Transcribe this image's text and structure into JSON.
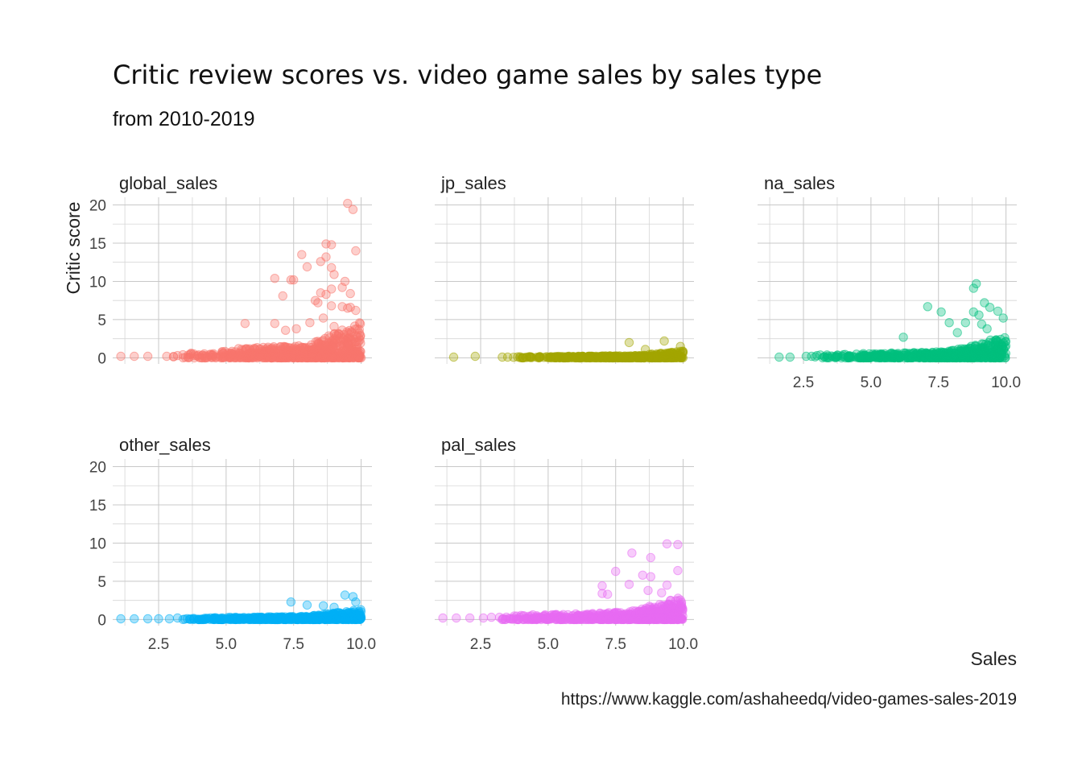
{
  "header": {
    "title": "Critic review scores vs. video game sales by sales type",
    "subtitle": "from 2010-2019"
  },
  "caption": "https://www.kaggle.com/ashaheedq/video-games-sales-2019",
  "chart_data": {
    "type": "scatter",
    "facets": [
      "global_sales",
      "jp_sales",
      "na_sales",
      "other_sales",
      "pal_sales"
    ],
    "xlabel": "Sales",
    "ylabel": "Critic score",
    "xlim": [
      0.8,
      10.4
    ],
    "ylim": [
      -0.8,
      21
    ],
    "x_ticks": [
      "2.5",
      "5.0",
      "7.5",
      "10.0"
    ],
    "x_tick_values": [
      2.5,
      5.0,
      7.5,
      10.0
    ],
    "y_ticks": [
      "0",
      "5",
      "10",
      "15",
      "20"
    ],
    "y_tick_values": [
      0,
      5,
      10,
      15,
      20
    ],
    "grid": true,
    "point_alpha": 0.35,
    "colors": {
      "global_sales": "#F8766D",
      "jp_sales": "#A3A500",
      "na_sales": "#00BF7D",
      "other_sales": "#00B0F6",
      "pal_sales": "#E76BF3"
    },
    "series": [
      {
        "name": "global_sales",
        "outliers": [
          [
            9.5,
            20.2
          ],
          [
            9.7,
            19.4
          ],
          [
            8.7,
            14.9
          ],
          [
            8.9,
            14.8
          ],
          [
            9.8,
            14
          ],
          [
            7.8,
            13.5
          ],
          [
            8.7,
            13.2
          ],
          [
            8.5,
            12.6
          ],
          [
            8,
            11.9
          ],
          [
            8.9,
            11.8
          ],
          [
            9,
            10.9
          ],
          [
            6.8,
            10.4
          ],
          [
            7.4,
            10.2
          ],
          [
            7.5,
            10.2
          ],
          [
            9.4,
            10
          ],
          [
            9.3,
            9.2
          ],
          [
            8.9,
            9
          ],
          [
            7.1,
            8.1
          ],
          [
            8.5,
            8.5
          ],
          [
            8.7,
            8.3
          ],
          [
            9.6,
            8.4
          ],
          [
            8.3,
            7.5
          ],
          [
            8.4,
            7.2
          ],
          [
            8.9,
            6.8
          ],
          [
            9.3,
            6.7
          ],
          [
            9.5,
            6.5
          ],
          [
            9.6,
            6.6
          ],
          [
            9.8,
            6.2
          ],
          [
            5.7,
            4.5
          ],
          [
            6.8,
            4.5
          ],
          [
            7.2,
            3.6
          ],
          [
            7.6,
            3.8
          ],
          [
            8.1,
            4.6
          ],
          [
            8.6,
            5.2
          ],
          [
            9,
            4.1
          ],
          [
            9.6,
            3.1
          ],
          [
            9.9,
            2.1
          ]
        ],
        "low": [
          [
            1.1,
            0.2
          ],
          [
            1.6,
            0.2
          ],
          [
            2.1,
            0.2
          ],
          [
            2.8,
            0.2
          ],
          [
            3.2,
            0.3
          ],
          [
            3.4,
            0.4
          ],
          [
            3.7,
            0.6
          ]
        ],
        "dense": {
          "from": 3.0,
          "to": 10.0,
          "count": 720,
          "max_y": 2.0,
          "steep_from": 7.0,
          "steep_max_y": 4.8
        }
      },
      {
        "name": "jp_sales",
        "outliers": [
          [
            8,
            2
          ],
          [
            9.3,
            2.2
          ],
          [
            9.9,
            1.5
          ],
          [
            8.6,
            1.1
          ]
        ],
        "low": [
          [
            1.5,
            0.1
          ],
          [
            2.3,
            0.2
          ],
          [
            3.3,
            0.1
          ],
          [
            3.5,
            0.1
          ]
        ],
        "dense": {
          "from": 3.6,
          "to": 10.0,
          "count": 520,
          "max_y": 0.35,
          "steep_from": 7.5,
          "steep_max_y": 0.9
        }
      },
      {
        "name": "na_sales",
        "outliers": [
          [
            8.9,
            9.7
          ],
          [
            8.8,
            9.1
          ],
          [
            7.1,
            6.7
          ],
          [
            9.2,
            7.2
          ],
          [
            9.4,
            6.6
          ],
          [
            7.6,
            6
          ],
          [
            8.8,
            6
          ],
          [
            9,
            5.6
          ],
          [
            9.7,
            6.1
          ],
          [
            9.9,
            5.2
          ],
          [
            7.9,
            4.6
          ],
          [
            8.5,
            4.6
          ],
          [
            9.1,
            4.4
          ],
          [
            6.2,
            2.7
          ],
          [
            8.2,
            3.3
          ],
          [
            9.3,
            3.8
          ]
        ],
        "low": [
          [
            1.6,
            0.1
          ],
          [
            2,
            0.1
          ],
          [
            2.6,
            0.2
          ],
          [
            2.8,
            0.2
          ],
          [
            3,
            0.3
          ],
          [
            3.4,
            0.2
          ]
        ],
        "dense": {
          "from": 2.9,
          "to": 10.0,
          "count": 640,
          "max_y": 1.0,
          "steep_from": 7.0,
          "steep_max_y": 3.0
        }
      },
      {
        "name": "other_sales",
        "outliers": [
          [
            9.4,
            3.2
          ],
          [
            9.7,
            3
          ],
          [
            9.8,
            2.3
          ],
          [
            7.4,
            2.3
          ],
          [
            8,
            1.9
          ],
          [
            8.6,
            1.8
          ],
          [
            9,
            1.6
          ]
        ],
        "low": [
          [
            1.1,
            0.1
          ],
          [
            1.6,
            0.1
          ],
          [
            2.1,
            0.1
          ],
          [
            2.5,
            0.1
          ],
          [
            2.9,
            0.1
          ],
          [
            3.2,
            0.2
          ]
        ],
        "dense": {
          "from": 3.0,
          "to": 10.0,
          "count": 600,
          "max_y": 0.5,
          "steep_from": 7.0,
          "steep_max_y": 1.3
        }
      },
      {
        "name": "pal_sales",
        "outliers": [
          [
            9.4,
            9.9
          ],
          [
            9.8,
            9.8
          ],
          [
            8.1,
            8.7
          ],
          [
            8.8,
            8.1
          ],
          [
            9.8,
            6.4
          ],
          [
            7.5,
            6.3
          ],
          [
            8.5,
            5.8
          ],
          [
            8.8,
            5.6
          ],
          [
            7,
            4.4
          ],
          [
            8,
            4.6
          ],
          [
            9.4,
            4.5
          ],
          [
            7,
            3.4
          ],
          [
            7.2,
            3.3
          ],
          [
            8.7,
            3.8
          ],
          [
            9.2,
            3.5
          ]
        ],
        "low": [
          [
            1.1,
            0.2
          ],
          [
            1.6,
            0.2
          ],
          [
            2.1,
            0.2
          ],
          [
            2.6,
            0.2
          ],
          [
            2.9,
            0.3
          ],
          [
            3.2,
            0.3
          ]
        ],
        "dense": {
          "from": 3.0,
          "to": 10.0,
          "count": 640,
          "max_y": 1.2,
          "steep_from": 7.0,
          "steep_max_y": 3.0
        }
      }
    ]
  }
}
